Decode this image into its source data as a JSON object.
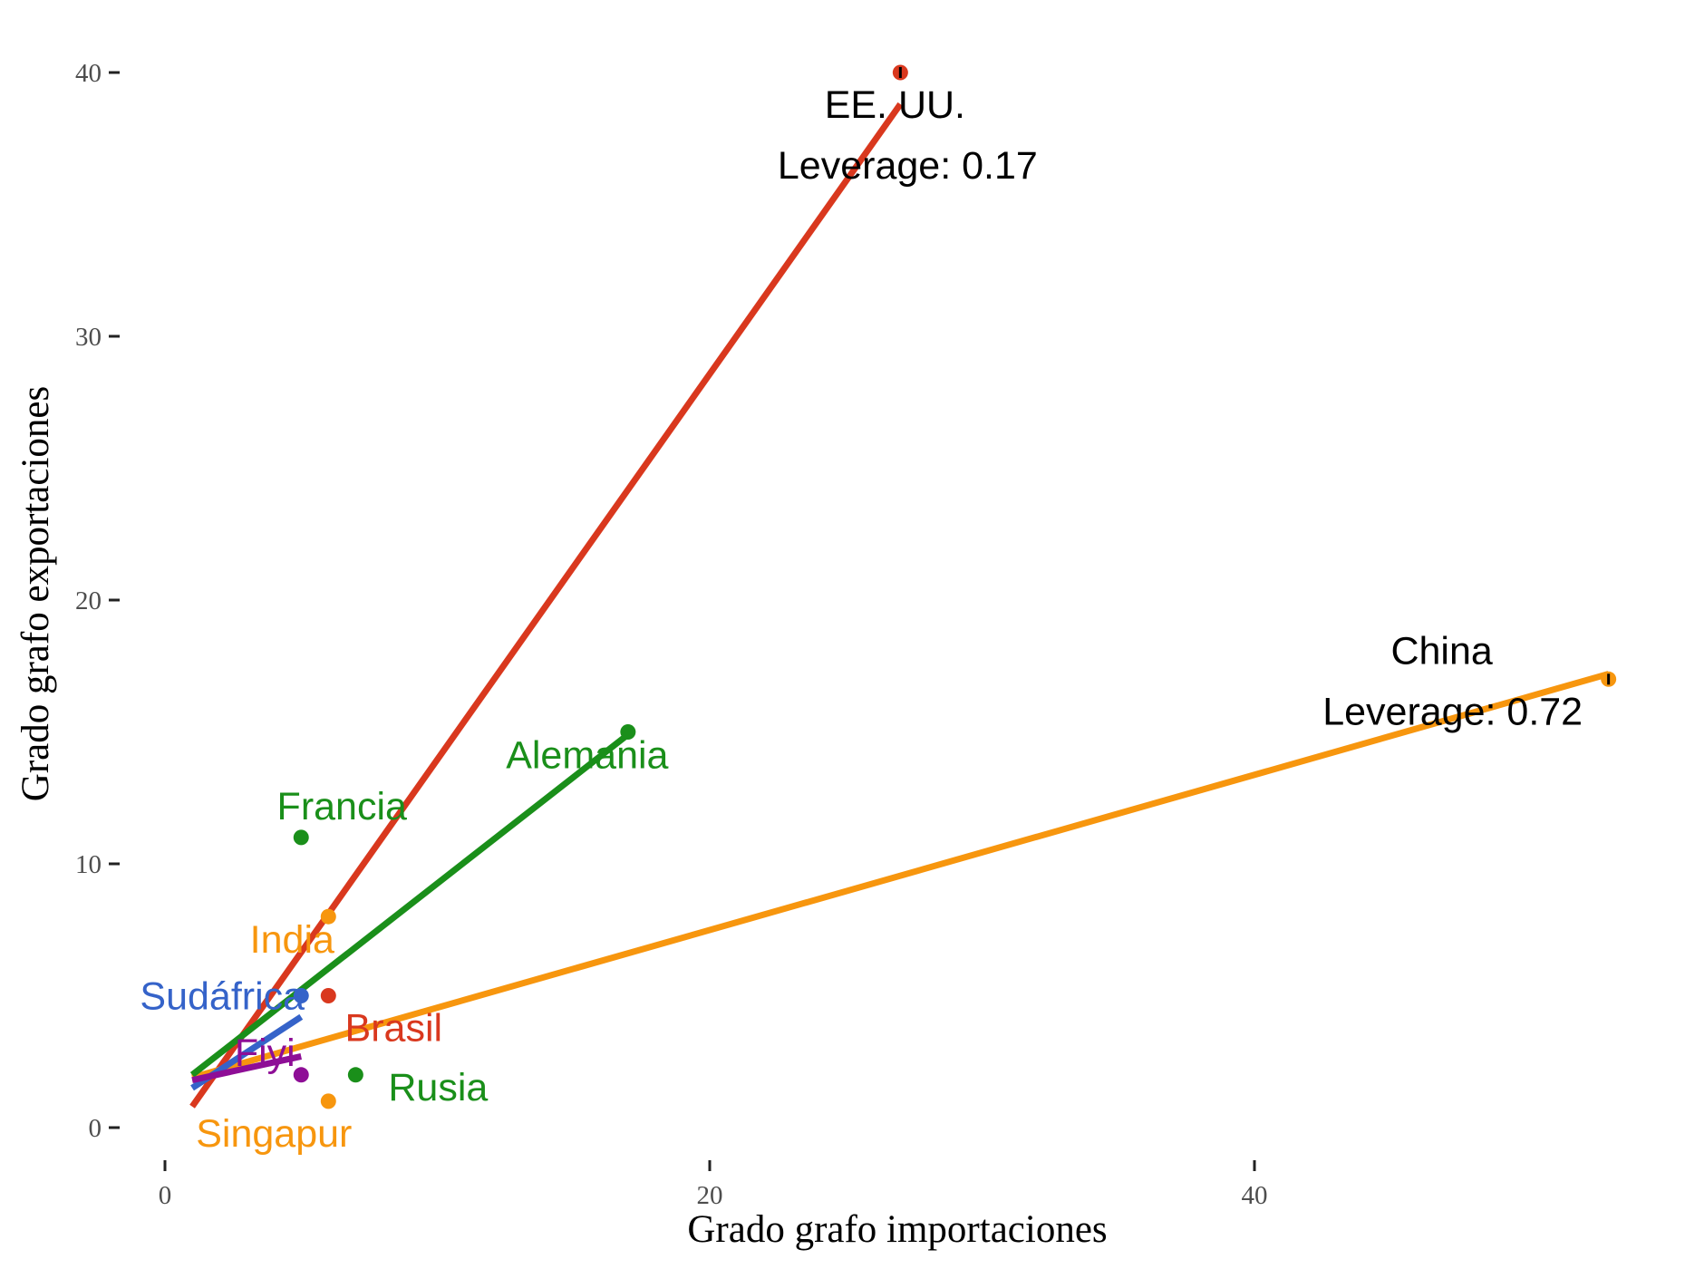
{
  "chart_data": {
    "type": "scatter",
    "xlabel": "Grado grafo importaciones",
    "ylabel": "Grado grafo exportaciones",
    "xlim": [
      -1,
      55
    ],
    "ylim": [
      -1,
      41.2
    ],
    "x_ticks": [
      0,
      20,
      40
    ],
    "y_ticks": [
      0,
      10,
      20,
      30,
      40
    ],
    "grid": false,
    "legend": "none",
    "points": [
      {
        "label": "EE. UU.",
        "x": 27,
        "y": 40,
        "color": "#d9381e"
      },
      {
        "label": "China",
        "x": 53,
        "y": 17,
        "color": "#f7960e"
      },
      {
        "label": "Alemania",
        "x": 17,
        "y": 15,
        "color": "#1a8f1a"
      },
      {
        "label": "Francia",
        "x": 5,
        "y": 11,
        "color": "#1a8f1a"
      },
      {
        "label": "India",
        "x": 6,
        "y": 8,
        "color": "#f7960e"
      },
      {
        "label": "Sudáfrica",
        "x": 5,
        "y": 5,
        "color": "#3563c9"
      },
      {
        "label": "Brasil",
        "x": 6,
        "y": 5,
        "color": "#d9381e"
      },
      {
        "label": "Fiyi",
        "x": 5,
        "y": 2,
        "color": "#8e0e96"
      },
      {
        "label": "Rusia",
        "x": 7,
        "y": 2,
        "color": "#1a8f1a"
      },
      {
        "label": "Singapur",
        "x": 6,
        "y": 1,
        "color": "#f7960e"
      }
    ],
    "series": [
      {
        "x": [
          1,
          27
        ],
        "y": [
          0.8,
          38.8
        ],
        "color": "#d9381e"
      },
      {
        "x": [
          1,
          53
        ],
        "y": [
          1.9,
          17.2
        ],
        "color": "#f7960e"
      },
      {
        "x": [
          1,
          17
        ],
        "y": [
          2.0,
          14.9
        ],
        "color": "#1a8f1a"
      },
      {
        "x": [
          1,
          5
        ],
        "y": [
          1.5,
          4.2
        ],
        "color": "#3563c9"
      },
      {
        "x": [
          1,
          5
        ],
        "y": [
          1.8,
          2.7
        ],
        "color": "#8e0e96"
      }
    ],
    "annotations": [
      {
        "label": "EE. UU.",
        "leverage": "Leverage: 0.17",
        "x": 27,
        "y": 40
      },
      {
        "label": "China",
        "leverage": "Leverage: 0.72",
        "x": 53,
        "y": 17
      }
    ]
  }
}
